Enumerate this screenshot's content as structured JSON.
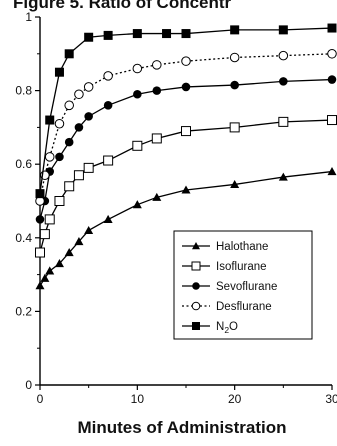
{
  "chart_data": {
    "type": "line",
    "title": "Figure 5. Ratio of Concentr",
    "xlabel": "Minutes of Administration",
    "ylabel": "",
    "xlim": [
      0,
      30
    ],
    "ylim": [
      0,
      1
    ],
    "x_ticks": [
      "0",
      "10",
      "20",
      "30"
    ],
    "y_ticks": [
      "0",
      "0.2",
      "0.4",
      "0.6",
      "0.8",
      "1"
    ],
    "grid": false,
    "legend_position": "bottom-right",
    "series": [
      {
        "name": "Halothane",
        "marker": "triangle",
        "line": "solid",
        "x": [
          0,
          0.5,
          1,
          2,
          3,
          4,
          5,
          7,
          10,
          12,
          15,
          20,
          25,
          30
        ],
        "y": [
          0.27,
          0.29,
          0.31,
          0.33,
          0.36,
          0.39,
          0.42,
          0.45,
          0.49,
          0.51,
          0.53,
          0.545,
          0.565,
          0.58
        ]
      },
      {
        "name": "Isoflurane",
        "marker": "square-open",
        "line": "solid",
        "x": [
          0,
          0.5,
          1,
          2,
          3,
          4,
          5,
          7,
          10,
          12,
          15,
          20,
          25,
          30
        ],
        "y": [
          0.36,
          0.41,
          0.45,
          0.5,
          0.54,
          0.57,
          0.59,
          0.61,
          0.65,
          0.67,
          0.69,
          0.7,
          0.715,
          0.72
        ]
      },
      {
        "name": "Sevoflurane",
        "marker": "circle-filled",
        "line": "solid",
        "x": [
          0,
          0.5,
          1,
          2,
          3,
          4,
          5,
          7,
          10,
          12,
          15,
          20,
          25,
          30
        ],
        "y": [
          0.45,
          0.5,
          0.58,
          0.62,
          0.66,
          0.7,
          0.73,
          0.76,
          0.79,
          0.8,
          0.81,
          0.815,
          0.825,
          0.83
        ]
      },
      {
        "name": "Desflurane",
        "marker": "circle-open",
        "line": "dotted",
        "x": [
          0,
          0.5,
          1,
          2,
          3,
          4,
          5,
          7,
          10,
          12,
          15,
          20,
          25,
          30
        ],
        "y": [
          0.5,
          0.57,
          0.62,
          0.71,
          0.76,
          0.79,
          0.81,
          0.84,
          0.86,
          0.87,
          0.88,
          0.89,
          0.895,
          0.9
        ]
      },
      {
        "name": "N2O",
        "marker": "square-filled",
        "line": "solid",
        "x": [
          0,
          1,
          2,
          3,
          5,
          7,
          10,
          13,
          15,
          20,
          25,
          30
        ],
        "y": [
          0.52,
          0.72,
          0.85,
          0.9,
          0.945,
          0.95,
          0.955,
          0.955,
          0.955,
          0.965,
          0.965,
          0.97
        ]
      }
    ]
  }
}
